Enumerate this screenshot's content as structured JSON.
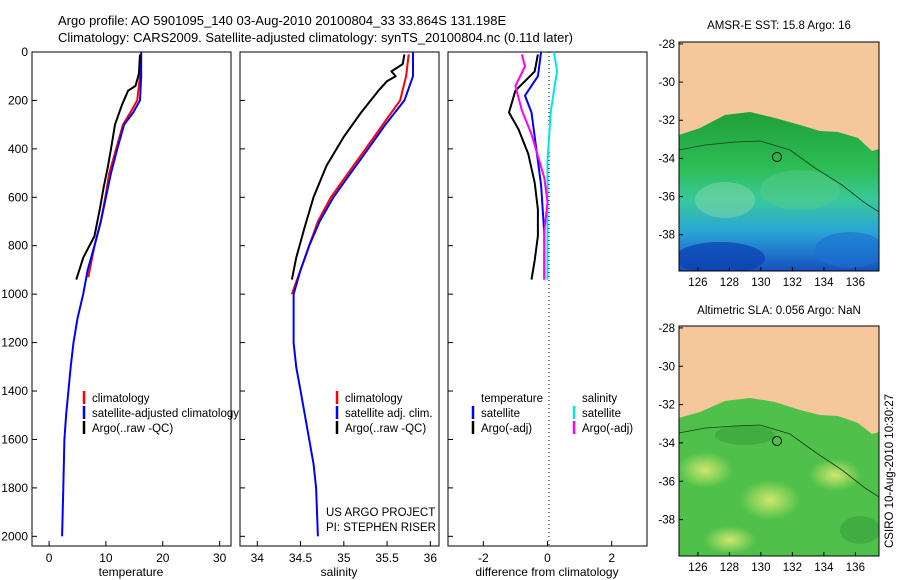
{
  "header": {
    "line1": "Argo profile: AO 5901095_140 03-Aug-2010 20100804_33 33.864S 131.198E",
    "line2": "Climatology: CARS2009. Satellite-adjusted climatology: synTS_20100804.nc (0.11d later)"
  },
  "colors": {
    "climatology": "#ff0000",
    "satellite": "#0000ff",
    "argo": "#000000",
    "cyan": "#00e5ee",
    "magenta": "#ff00ff",
    "land": "#f5c79a"
  },
  "chart_data": [
    {
      "type": "line",
      "xlabel": "temperature",
      "ylabel": "",
      "xlim": [
        -3,
        32
      ],
      "ylim": [
        2040,
        0
      ],
      "xticks": [
        "0",
        "10",
        "20",
        "30"
      ],
      "yticks": [
        "0",
        "200",
        "400",
        "600",
        "800",
        "1000",
        "1200",
        "1400",
        "1600",
        "1800",
        "2000"
      ],
      "legend": {
        "placement": "lower-right",
        "entries": [
          "climatology",
          "satellite-adjusted climatology",
          "Argo(..raw -QC)"
        ]
      },
      "series": [
        {
          "name": "climatology",
          "color": "#ff0000",
          "x": [
            16.0,
            16.0,
            15.5,
            14.3,
            13.0,
            11.8,
            10.6,
            9.9,
            9.1,
            8.0,
            6.9
          ],
          "y": [
            10,
            100,
            200,
            250,
            300,
            400,
            500,
            600,
            700,
            800,
            930
          ]
        },
        {
          "name": "satellite-adjusted climatology",
          "color": "#0000ff",
          "x": [
            16.2,
            16.2,
            16.0,
            14.8,
            13.2,
            12.0,
            10.9,
            10.0,
            9.1,
            8.0,
            6.8,
            6.0,
            5.0,
            4.3,
            3.8,
            3.4,
            3.0,
            2.7,
            2.5,
            2.3
          ],
          "y": [
            0,
            100,
            200,
            250,
            300,
            400,
            500,
            600,
            700,
            800,
            900,
            1000,
            1100,
            1200,
            1300,
            1400,
            1500,
            1600,
            1800,
            2000
          ]
        },
        {
          "name": "Argo(..raw -QC)",
          "color": "#000000",
          "x": [
            16.0,
            15.8,
            15.2,
            13.9,
            12.8,
            11.6,
            10.9,
            10.3,
            9.6,
            9.0,
            8.0,
            6.0,
            4.8
          ],
          "y": [
            10,
            90,
            140,
            160,
            220,
            300,
            400,
            480,
            560,
            640,
            760,
            850,
            940
          ]
        }
      ]
    },
    {
      "type": "line",
      "xlabel": "salinity",
      "ylabel": "",
      "xlim": [
        33.8,
        36.1
      ],
      "ylim": [
        2040,
        0
      ],
      "xticks": [
        "34",
        "34.5",
        "35",
        "35.5",
        "36"
      ],
      "legend": {
        "placement": "lower-right",
        "entries": [
          "climatology",
          "satellite adj. clim.",
          "Argo(..raw -QC)"
        ]
      },
      "annotations": [
        "US ARGO PROJECT",
        "PI: STEPHEN RISER"
      ],
      "series": [
        {
          "name": "climatology",
          "color": "#ff0000",
          "x": [
            35.75,
            35.72,
            35.65,
            35.45,
            35.25,
            35.05,
            34.85,
            34.7,
            34.6,
            34.5,
            34.45,
            34.4
          ],
          "y": [
            10,
            100,
            200,
            300,
            400,
            500,
            600,
            700,
            800,
            900,
            950,
            1000
          ]
        },
        {
          "name": "satellite adj. clim.",
          "color": "#0000ff",
          "x": [
            35.8,
            35.8,
            35.7,
            35.48,
            35.28,
            35.08,
            34.88,
            34.72,
            34.6,
            34.5,
            34.42,
            34.42,
            34.45,
            34.5,
            34.55,
            34.6,
            34.65,
            34.68,
            34.7
          ],
          "y": [
            0,
            100,
            200,
            300,
            400,
            500,
            600,
            700,
            800,
            900,
            1000,
            1200,
            1300,
            1400,
            1500,
            1600,
            1700,
            1800,
            2000
          ]
        },
        {
          "name": "Argo(..raw -QC)",
          "color": "#000000",
          "x": [
            35.7,
            35.68,
            35.55,
            35.6,
            35.5,
            35.4,
            35.2,
            35.0,
            34.8,
            34.65,
            34.55,
            34.45,
            34.4
          ],
          "y": [
            10,
            50,
            80,
            100,
            120,
            160,
            250,
            350,
            470,
            600,
            720,
            850,
            940
          ]
        }
      ]
    },
    {
      "type": "line",
      "xlabel": "difference from climatology",
      "ylabel": "",
      "xlim": [
        -3.1,
        3.1
      ],
      "ylim": [
        2040,
        0
      ],
      "xticks": [
        "-2",
        "0",
        "2"
      ],
      "legend": {
        "placement": "lower-center",
        "groups": [
          {
            "title": "temperature",
            "entries": [
              "satellite",
              "Argo(-adj)"
            ]
          },
          {
            "title": "salinity",
            "entries": [
              "satellite",
              "Argo(-adj)"
            ]
          }
        ]
      },
      "series": [
        {
          "name": "temperature satellite",
          "color": "#0000ff",
          "x": [
            -0.2,
            -0.3,
            -0.7,
            -0.5,
            -0.4,
            -0.3,
            -0.2,
            -0.15,
            -0.1,
            -0.1,
            -0.1
          ],
          "y": [
            0,
            100,
            180,
            250,
            350,
            450,
            550,
            650,
            750,
            850,
            940
          ]
        },
        {
          "name": "temperature Argo(-adj)",
          "color": "#000000",
          "x": [
            -0.3,
            -0.4,
            -1.0,
            -1.2,
            -0.9,
            -0.6,
            -0.4,
            -0.3,
            -0.3,
            -0.4,
            -0.5
          ],
          "y": [
            10,
            80,
            160,
            250,
            320,
            420,
            540,
            650,
            760,
            860,
            940
          ]
        },
        {
          "name": "salinity satellite",
          "color": "#00e5ee",
          "x": [
            0.2,
            0.3,
            0.2,
            0.1,
            0.05,
            0.0,
            0.0,
            0.0,
            0.0,
            0.0,
            0.0
          ],
          "y": [
            0,
            80,
            160,
            250,
            350,
            450,
            550,
            650,
            750,
            850,
            940
          ]
        },
        {
          "name": "salinity Argo(-adj)",
          "color": "#ff00ff",
          "x": [
            -0.8,
            -0.7,
            -1.0,
            -0.8,
            -0.5,
            -0.3,
            -0.1,
            0.0,
            -0.1,
            -0.1,
            -0.1
          ],
          "y": [
            10,
            60,
            140,
            240,
            340,
            430,
            520,
            620,
            740,
            850,
            940
          ]
        }
      ]
    }
  ],
  "maps": [
    {
      "title": "AMSR-E SST: 15.8 Argo: 16",
      "lat_ticks": [
        "-28",
        "-30",
        "-32",
        "-34",
        "-36",
        "-38"
      ],
      "lon_ticks": [
        "126",
        "128",
        "130",
        "132",
        "134",
        "136"
      ],
      "marker": {
        "lon": 131.2,
        "lat": -33.86
      }
    },
    {
      "title": "Altimetric SLA: 0.056 Argo: NaN",
      "lat_ticks": [
        "-28",
        "-30",
        "-32",
        "-34",
        "-36",
        "-38"
      ],
      "lon_ticks": [
        "126",
        "128",
        "130",
        "132",
        "134",
        "136"
      ],
      "marker": {
        "lon": 131.2,
        "lat": -33.86
      }
    }
  ],
  "footer": {
    "stamp": "CSIRO 10-Aug-2010 10:30:27"
  }
}
